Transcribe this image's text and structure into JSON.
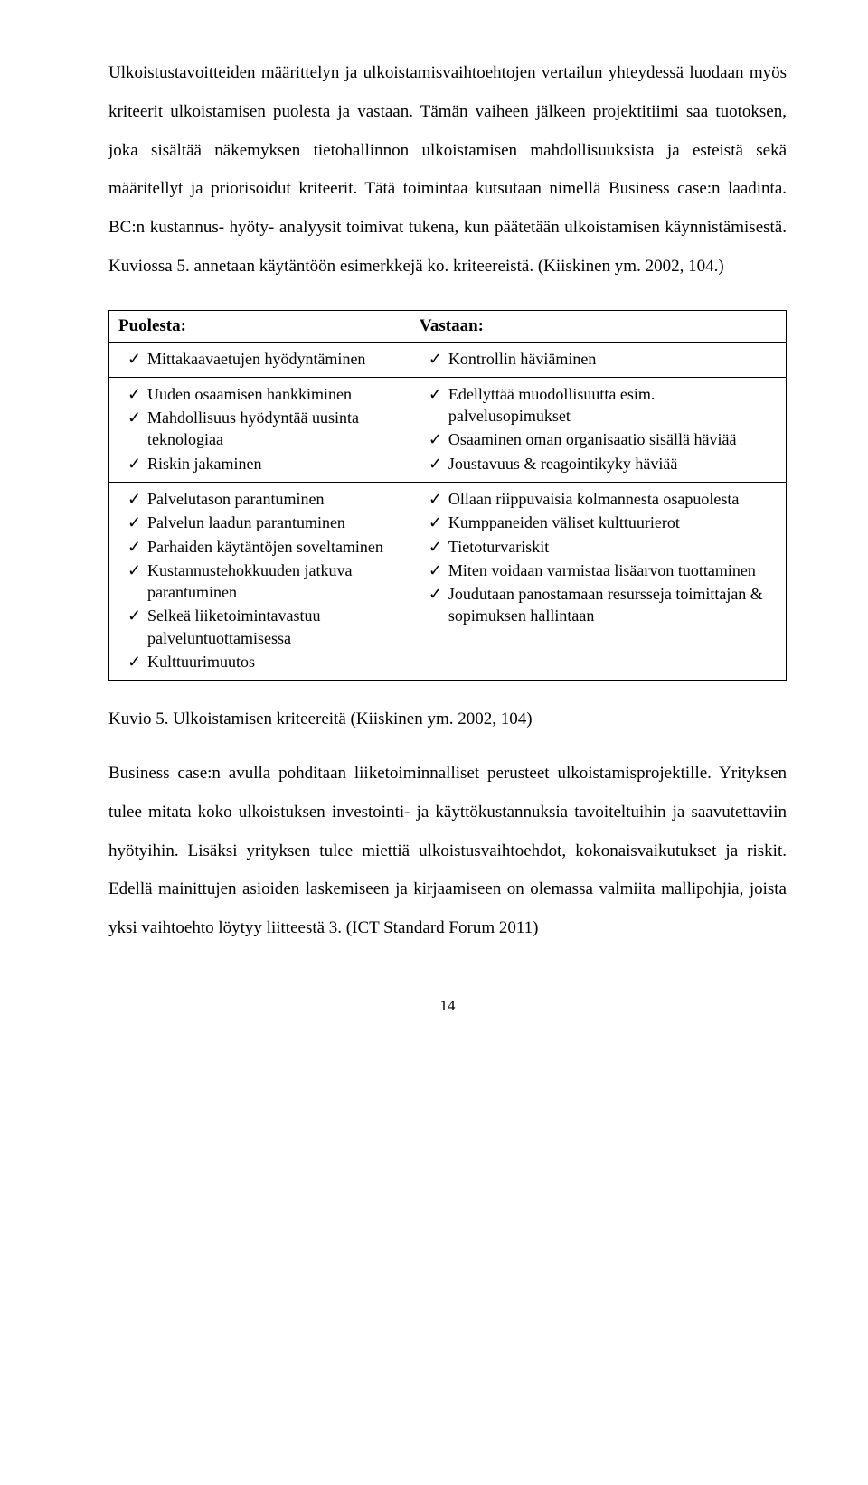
{
  "paragraphs": {
    "p1": "Ulkoistustavoitteiden määrittelyn ja ulkoistamisvaihtoehtojen vertailun yhteydessä luodaan myös kriteerit ulkoistamisen puolesta ja vastaan. Tämän vaiheen jälkeen projektitiimi saa tuotoksen, joka sisältää näkemyksen tietohallinnon ulkoistamisen mahdollisuuksista ja esteistä sekä määritellyt ja priorisoidut kriteerit. Tätä toimintaa kutsutaan nimellä Business case:n laadinta. BC:n kustannus- hyöty- analyysit toimivat tukena, kun päätetään ulkoistamisen käynnistämisestä. Kuviossa 5. annetaan käytäntöön esimerkkejä ko. kriteereistä. (Kiiskinen ym. 2002, 104.)",
    "p2": "Business case:n avulla pohditaan liiketoiminnalliset perusteet ulkoistamisprojektille. Yrityksen tulee mitata koko ulkoistuksen investointi- ja käyttökustannuksia tavoiteltuihin ja saavutettaviin hyötyihin. Lisäksi yrityksen tulee miettiä ulkoistusvaihtoehdot, kokonaisvaikutukset ja riskit. Edellä mainittujen asioiden laskemiseen ja kirjaamiseen on olemassa valmiita mallipohjia, joista yksi vaihtoehto löytyy liitteestä 3. (ICT Standard Forum 2011)"
  },
  "table": {
    "header_left": "Puolesta:",
    "header_right": "Vastaan:",
    "rows": [
      {
        "left": [
          "Mittakaavaetujen hyödyntäminen"
        ],
        "right": [
          "Kontrollin häviäminen"
        ]
      },
      {
        "left": [
          "Uuden osaamisen hankkiminen",
          "Mahdollisuus hyödyntää uusinta teknologiaa",
          "Riskin jakaminen"
        ],
        "right": [
          "Edellyttää muodollisuutta esim. palvelusopimukset",
          "Osaaminen oman organisaatio sisällä häviää",
          "Joustavuus & reagointikyky häviää"
        ]
      },
      {
        "left": [
          "Palvelutason parantuminen",
          "Palvelun laadun parantuminen",
          "Parhaiden käytäntöjen soveltaminen",
          "Kustannustehokkuuden jatkuva parantuminen",
          "Selkeä liiketoimintavastuu palveluntuottamisessa",
          "Kulttuurimuutos"
        ],
        "right": [
          "Ollaan riippuvaisia kolmannesta osapuolesta",
          "Kumppaneiden väliset kulttuurierot",
          "Tietoturvariskit",
          "Miten voidaan varmistaa lisäarvon tuottaminen",
          "Joudutaan panostamaan resursseja toimittajan & sopimuksen hallintaan"
        ]
      }
    ]
  },
  "caption": "Kuvio 5. Ulkoistamisen kriteereitä (Kiiskinen ym. 2002, 104)",
  "page_number": "14"
}
